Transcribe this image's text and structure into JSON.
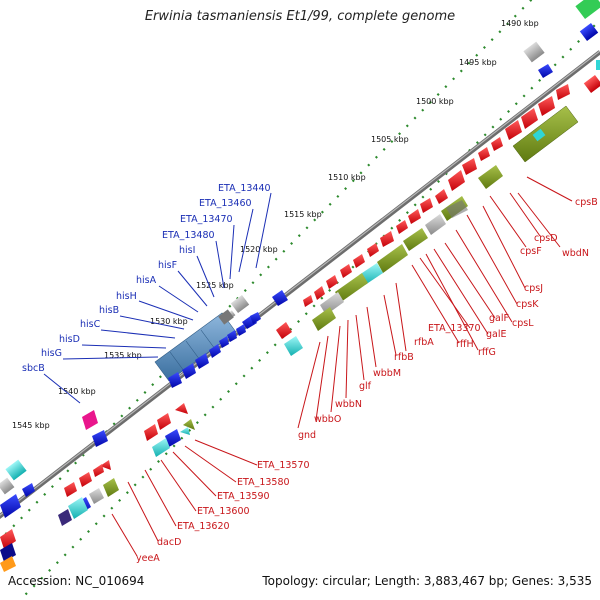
{
  "title": "Erwinia tasmaniensis Et1/99, complete genome",
  "footer": {
    "accession": "Accession: NC_010694",
    "stats": "Topology: circular; Length: 3,883,467 bp; Genes: 3,535"
  },
  "kbp_labels": [
    "1490 kbp",
    "1495 kbp",
    "1500 kbp",
    "1505 kbp",
    "1510 kbp",
    "1515 kbp",
    "1520 kbp",
    "1525 kbp",
    "1530 kbp",
    "1535 kbp",
    "1540 kbp",
    "1545 kbp"
  ],
  "genes_blue": [
    "ETA_13440",
    "ETA_13460",
    "ETA_13470",
    "ETA_13480",
    "hisI",
    "hisF",
    "hisA",
    "hisH",
    "hisB",
    "hisC",
    "hisD",
    "hisG",
    "sbcB"
  ],
  "genes_red_upper": [
    "cpsB",
    "wbdN",
    "cpsD",
    "cpsF",
    "cpsJ",
    "cpsK",
    "cpsL",
    "galF",
    "galE",
    "ETA_13370",
    "rffH",
    "rffG",
    "rfbA",
    "rfbB",
    "wbbM",
    "glf",
    "wbbN",
    "wbbO",
    "gnd"
  ],
  "genes_red_lower": [
    "ETA_13570",
    "ETA_13580",
    "ETA_13590",
    "ETA_13600",
    "ETA_13620",
    "dacD",
    "yeeA"
  ],
  "colors": {
    "backbone": "#7a7a7a",
    "tick_green": "#2d8a2d",
    "gene_red": "#e8141b",
    "gene_blue": "#0b17e0",
    "gene_olive": "#7f9a22",
    "gene_cyan": "#2fd6d6",
    "gene_gray": "#9c9c9c",
    "gene_magenta": "#e9168c",
    "label_blue": "#1b2fb5",
    "label_red": "#c8161a"
  }
}
